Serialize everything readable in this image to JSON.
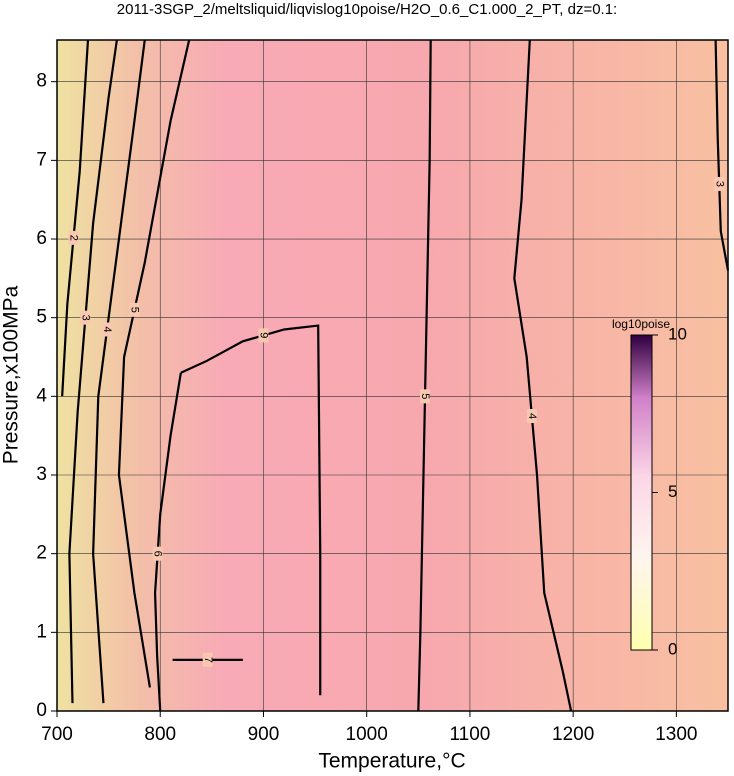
{
  "chart_data": {
    "type": "contour",
    "title": "2011-3SGP_2/meltsliquid/liqvislog10poise/H2O_0.6_C1.000_2_PT, dz=0.1:",
    "x_label": "Temperature,°C",
    "y_label": "Pressure,x100MPa",
    "xlim": [
      700,
      1350
    ],
    "ylim": [
      0,
      8.53
    ],
    "xticks": [
      700,
      800,
      900,
      1000,
      1100,
      1200,
      1300
    ],
    "yticks": [
      0,
      1,
      2,
      3,
      4,
      5,
      6,
      7,
      8
    ],
    "grid": true,
    "contours": [
      {
        "level": 5,
        "x": [
          1050,
          1052,
          1055,
          1058,
          1061,
          1062
        ],
        "y": [
          0,
          1,
          3,
          5,
          7,
          8.53
        ]
      },
      {
        "level": 4,
        "x": [
          1198,
          1190,
          1172,
          1165,
          1155,
          1143,
          1150,
          1158
        ],
        "y": [
          0,
          0.5,
          1.5,
          3,
          4.5,
          5.5,
          6.5,
          8.53
        ]
      },
      {
        "level": 3,
        "x": [
          1350,
          1343,
          1340,
          1338
        ],
        "y": [
          5.6,
          6.1,
          7.3,
          8.53
        ]
      },
      {
        "level": 9,
        "x": [
          955,
          955,
          953,
          920,
          880,
          845,
          820
        ],
        "y": [
          0.2,
          2,
          4.9,
          4.85,
          4.7,
          4.45,
          4.3
        ]
      },
      {
        "level": 6,
        "x": [
          820,
          810,
          800,
          795,
          797,
          800
        ],
        "y": [
          4.3,
          3.5,
          2.5,
          1.5,
          0.7,
          0
        ]
      },
      {
        "level": 7,
        "x": [
          812,
          880
        ],
        "y": [
          0.65,
          0.65
        ]
      },
      {
        "level": 5,
        "x": [
          790,
          775,
          760,
          765,
          785,
          810,
          828
        ],
        "y": [
          0.3,
          1.5,
          3,
          4.5,
          5.7,
          7.5,
          8.53
        ]
      },
      {
        "level": 4,
        "x": [
          745,
          735,
          740,
          757,
          775,
          785
        ],
        "y": [
          0.1,
          2,
          4,
          5.7,
          7.5,
          8.53
        ]
      },
      {
        "level": 3,
        "x": [
          715,
          712,
          720,
          735,
          750,
          758
        ],
        "y": [
          0.1,
          2,
          3.8,
          6.2,
          7.8,
          8.53
        ]
      },
      {
        "level": 2,
        "x": [
          705,
          710,
          722,
          730
        ],
        "y": [
          4,
          5.17,
          6.86,
          8.53
        ]
      }
    ],
    "colorbar": {
      "label": "log10poise",
      "lim": [
        0,
        10
      ],
      "ticks": [
        0,
        5,
        10
      ]
    }
  }
}
